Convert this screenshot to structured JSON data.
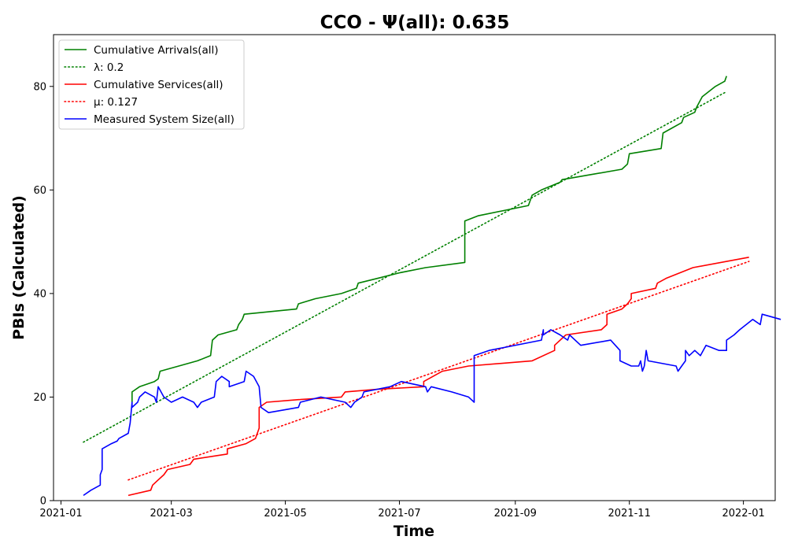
{
  "chart_data": {
    "type": "line",
    "title": "CCO -  Ψ(all): 0.635",
    "xlabel": "Time",
    "ylabel": "PBIs (Calculated)",
    "x_ticks": [
      "2021-01",
      "2021-03",
      "2021-05",
      "2021-07",
      "2021-09",
      "2021-11",
      "2022-01"
    ],
    "y_ticks": [
      "0",
      "20",
      "40",
      "60",
      "80"
    ],
    "xlim": [
      "2020-12-28",
      "2022-01-18"
    ],
    "ylim": [
      0,
      90
    ],
    "grid": false,
    "legend_position": "upper-left",
    "legend": [
      "Cumulative Arrivals(all)",
      "λ: 0.2",
      "Cumulative Services(all)",
      "μ: 0.127",
      "Measured System Size(all)"
    ],
    "series": [
      {
        "name": "Cumulative Arrivals(all)",
        "color": "#008000",
        "style": "solid",
        "points": [
          [
            "2021-02-08",
            19
          ],
          [
            "2021-02-08",
            21
          ],
          [
            "2021-02-12",
            22
          ],
          [
            "2021-02-20",
            23
          ],
          [
            "2021-02-22",
            23.5
          ],
          [
            "2021-02-23",
            25
          ],
          [
            "2021-03-05",
            26
          ],
          [
            "2021-03-15",
            27
          ],
          [
            "2021-03-22",
            28
          ],
          [
            "2021-03-23",
            31
          ],
          [
            "2021-03-26",
            32
          ],
          [
            "2021-04-05",
            33
          ],
          [
            "2021-04-06",
            34
          ],
          [
            "2021-04-08",
            35
          ],
          [
            "2021-04-09",
            36
          ],
          [
            "2021-05-07",
            37
          ],
          [
            "2021-05-08",
            38
          ],
          [
            "2021-05-17",
            39
          ],
          [
            "2021-05-31",
            40
          ],
          [
            "2021-06-08",
            41
          ],
          [
            "2021-06-09",
            42
          ],
          [
            "2021-06-20",
            43
          ],
          [
            "2021-07-01",
            44
          ],
          [
            "2021-07-15",
            45
          ],
          [
            "2021-08-05",
            46
          ],
          [
            "2021-08-05",
            54
          ],
          [
            "2021-08-12",
            55
          ],
          [
            "2021-09-08",
            57
          ],
          [
            "2021-09-09",
            58
          ],
          [
            "2021-09-10",
            59
          ],
          [
            "2021-09-15",
            60
          ],
          [
            "2021-09-25",
            61.5
          ],
          [
            "2021-09-26",
            62
          ],
          [
            "2021-10-12",
            63
          ],
          [
            "2021-10-28",
            64
          ],
          [
            "2021-10-31",
            65
          ],
          [
            "2021-11-01",
            67
          ],
          [
            "2021-11-18",
            68
          ],
          [
            "2021-11-19",
            71
          ],
          [
            "2021-11-29",
            73
          ],
          [
            "2021-11-30",
            74
          ],
          [
            "2021-12-06",
            75
          ],
          [
            "2021-12-07",
            76
          ],
          [
            "2021-12-10",
            78
          ],
          [
            "2021-12-17",
            80
          ],
          [
            "2021-12-22",
            81
          ],
          [
            "2021-12-23",
            82
          ]
        ]
      },
      {
        "name": "λ: 0.2",
        "color": "#008000",
        "style": "dotted",
        "points": [
          [
            "2021-01-13",
            11.3
          ],
          [
            "2021-12-23",
            79
          ]
        ]
      },
      {
        "name": "Cumulative Services(all)",
        "color": "#ff0000",
        "style": "solid",
        "points": [
          [
            "2021-02-06",
            1
          ],
          [
            "2021-02-18",
            2
          ],
          [
            "2021-02-19",
            3
          ],
          [
            "2021-02-22",
            4
          ],
          [
            "2021-02-25",
            5
          ],
          [
            "2021-02-27",
            6
          ],
          [
            "2021-03-11",
            7
          ],
          [
            "2021-03-13",
            8
          ],
          [
            "2021-03-31",
            9
          ],
          [
            "2021-03-31",
            10
          ],
          [
            "2021-04-10",
            11
          ],
          [
            "2021-04-15",
            12
          ],
          [
            "2021-04-17",
            14
          ],
          [
            "2021-04-17",
            18
          ],
          [
            "2021-04-21",
            19
          ],
          [
            "2021-05-08",
            19.5
          ],
          [
            "2021-05-31",
            20
          ],
          [
            "2021-06-02",
            21
          ],
          [
            "2021-06-19",
            21.5
          ],
          [
            "2021-07-14",
            22
          ],
          [
            "2021-07-14",
            23
          ],
          [
            "2021-07-24",
            25
          ],
          [
            "2021-08-07",
            26
          ],
          [
            "2021-09-10",
            27
          ],
          [
            "2021-09-22",
            29
          ],
          [
            "2021-09-22",
            30
          ],
          [
            "2021-09-28",
            32
          ],
          [
            "2021-10-17",
            33
          ],
          [
            "2021-10-20",
            34
          ],
          [
            "2021-10-20",
            36
          ],
          [
            "2021-10-28",
            37
          ],
          [
            "2021-10-31",
            38
          ],
          [
            "2021-11-02",
            39
          ],
          [
            "2021-11-02",
            40
          ],
          [
            "2021-11-15",
            41
          ],
          [
            "2021-11-16",
            42
          ],
          [
            "2021-11-21",
            43
          ],
          [
            "2021-12-05",
            45
          ],
          [
            "2022-01-04",
            47
          ]
        ]
      },
      {
        "name": "μ: 0.127",
        "color": "#ff0000",
        "style": "dotted",
        "points": [
          [
            "2021-02-06",
            4
          ],
          [
            "2022-01-04",
            46.2
          ]
        ]
      },
      {
        "name": "Measured System Size(all)",
        "color": "#0000ff",
        "style": "solid",
        "points": [
          [
            "2021-01-13",
            1
          ],
          [
            "2021-01-17",
            2
          ],
          [
            "2021-01-22",
            3
          ],
          [
            "2021-01-22",
            5
          ],
          [
            "2021-01-23",
            6
          ],
          [
            "2021-01-23",
            10
          ],
          [
            "2021-01-28",
            11
          ],
          [
            "2021-01-31",
            11.5
          ],
          [
            "2021-02-01",
            12
          ],
          [
            "2021-02-06",
            13
          ],
          [
            "2021-02-07",
            15
          ],
          [
            "2021-02-08",
            19
          ],
          [
            "2021-02-08",
            18
          ],
          [
            "2021-02-11",
            19
          ],
          [
            "2021-02-12",
            20
          ],
          [
            "2021-02-15",
            21
          ],
          [
            "2021-02-20",
            20
          ],
          [
            "2021-02-21",
            19
          ],
          [
            "2021-02-22",
            22
          ],
          [
            "2021-02-25",
            20
          ],
          [
            "2021-03-01",
            19
          ],
          [
            "2021-03-07",
            20
          ],
          [
            "2021-03-13",
            19
          ],
          [
            "2021-03-15",
            18
          ],
          [
            "2021-03-17",
            19
          ],
          [
            "2021-03-24",
            20
          ],
          [
            "2021-03-25",
            23
          ],
          [
            "2021-03-28",
            24
          ],
          [
            "2021-04-01",
            23
          ],
          [
            "2021-04-01",
            22
          ],
          [
            "2021-04-09",
            23
          ],
          [
            "2021-04-10",
            25
          ],
          [
            "2021-04-14",
            24
          ],
          [
            "2021-04-17",
            22
          ],
          [
            "2021-04-18",
            18
          ],
          [
            "2021-04-22",
            17
          ],
          [
            "2021-05-08",
            18
          ],
          [
            "2021-05-09",
            19
          ],
          [
            "2021-05-20",
            20
          ],
          [
            "2021-06-02",
            19
          ],
          [
            "2021-06-05",
            18
          ],
          [
            "2021-06-07",
            19
          ],
          [
            "2021-06-11",
            20
          ],
          [
            "2021-06-12",
            21
          ],
          [
            "2021-06-26",
            22
          ],
          [
            "2021-07-02",
            23
          ],
          [
            "2021-07-15",
            22
          ],
          [
            "2021-07-16",
            21
          ],
          [
            "2021-07-18",
            22
          ],
          [
            "2021-07-29",
            21
          ],
          [
            "2021-08-07",
            20
          ],
          [
            "2021-08-10",
            19
          ],
          [
            "2021-08-10",
            28
          ],
          [
            "2021-08-18",
            29
          ],
          [
            "2021-09-15",
            31
          ],
          [
            "2021-09-16",
            33
          ],
          [
            "2021-09-16",
            32
          ],
          [
            "2021-09-20",
            33
          ],
          [
            "2021-09-25",
            32
          ],
          [
            "2021-09-29",
            31
          ],
          [
            "2021-09-30",
            32
          ],
          [
            "2021-10-06",
            30
          ],
          [
            "2021-10-22",
            31
          ],
          [
            "2021-10-27",
            29
          ],
          [
            "2021-10-27",
            27
          ],
          [
            "2021-11-02",
            26
          ],
          [
            "2021-11-06",
            26
          ],
          [
            "2021-11-07",
            27
          ],
          [
            "2021-11-08",
            25
          ],
          [
            "2021-11-09",
            26
          ],
          [
            "2021-11-10",
            29
          ],
          [
            "2021-11-11",
            27
          ],
          [
            "2021-11-26",
            26
          ],
          [
            "2021-11-27",
            25
          ],
          [
            "2021-11-29",
            26
          ],
          [
            "2021-12-01",
            27
          ],
          [
            "2021-12-01",
            29
          ],
          [
            "2021-12-03",
            28
          ],
          [
            "2021-12-06",
            29
          ],
          [
            "2021-12-09",
            28
          ],
          [
            "2021-12-12",
            30
          ],
          [
            "2021-12-19",
            29
          ],
          [
            "2021-12-23",
            29
          ],
          [
            "2021-12-23",
            31
          ],
          [
            "2021-12-27",
            32
          ],
          [
            "2021-12-30",
            33
          ],
          [
            "2022-01-06",
            35
          ],
          [
            "2022-01-10",
            34
          ],
          [
            "2022-01-11",
            36
          ],
          [
            "2022-01-21",
            35
          ]
        ]
      }
    ]
  }
}
